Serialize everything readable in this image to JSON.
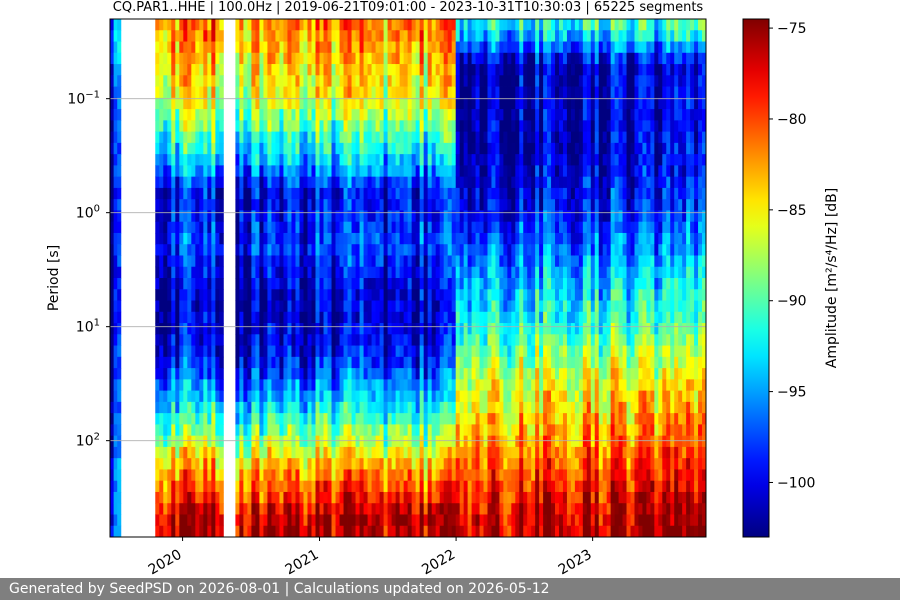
{
  "chart_data": {
    "type": "heatmap",
    "title": "CQ.PAR1..HHE | 100.0Hz | 2019-06-21T09:01:00 - 2023-10-31T10:30:03 | 65225 segments",
    "xlabel": "",
    "ylabel": "Period [s]",
    "x_axis": {
      "ticks": [
        "2020",
        "2021",
        "2022",
        "2023"
      ],
      "range": [
        "2019-06-21",
        "2023-10-31"
      ]
    },
    "y_axis": {
      "scale": "log",
      "inverted": true,
      "range": [
        0.02,
        700
      ],
      "ticks": [
        {
          "value": 0.1,
          "base": "10",
          "exp": "−1"
        },
        {
          "value": 1,
          "base": "10",
          "exp": "0"
        },
        {
          "value": 10,
          "base": "10",
          "exp": "1"
        },
        {
          "value": 100,
          "base": "10",
          "exp": "2"
        }
      ]
    },
    "grid": true,
    "colorbar": {
      "label": "Amplitude [m²/s⁴/Hz] [dB]",
      "colormap": "jet",
      "range": [
        -103,
        -74.5
      ],
      "ticks": [
        "−75",
        "−80",
        "−85",
        "−90",
        "−95",
        "−100"
      ],
      "tick_values": [
        -75,
        -80,
        -85,
        -90,
        -95,
        -100
      ]
    },
    "data_gaps": [
      {
        "start": "2019-07-20",
        "end": "2019-10-20"
      },
      {
        "start": "2020-04-15",
        "end": "2020-05-25"
      }
    ],
    "regimes": [
      {
        "start": "2019-06-21",
        "end": "2019-07-20",
        "rows": [
          {
            "period": 0.03,
            "dB": -95
          },
          {
            "period": 0.1,
            "dB": -99
          },
          {
            "period": 1,
            "dB": -101
          },
          {
            "period": 10,
            "dB": -101
          },
          {
            "period": 100,
            "dB": -99
          },
          {
            "period": 300,
            "dB": -97
          }
        ]
      },
      {
        "start": "2019-10-20",
        "end": "2021-12-31",
        "rows": [
          {
            "period": 0.025,
            "dB": -82
          },
          {
            "period": 0.05,
            "dB": -84
          },
          {
            "period": 0.1,
            "dB": -86
          },
          {
            "period": 0.3,
            "dB": -93
          },
          {
            "period": 0.7,
            "dB": -100
          },
          {
            "period": 2,
            "dB": -98
          },
          {
            "period": 5,
            "dB": -101
          },
          {
            "period": 10,
            "dB": -101
          },
          {
            "period": 20,
            "dB": -99
          },
          {
            "period": 50,
            "dB": -93
          },
          {
            "period": 100,
            "dB": -88
          },
          {
            "period": 200,
            "dB": -82
          },
          {
            "period": 500,
            "dB": -76
          }
        ]
      },
      {
        "start": "2021-12-31",
        "end": "2023-10-31",
        "rows": [
          {
            "period": 0.025,
            "dB": -92
          },
          {
            "period": 0.05,
            "dB": -101
          },
          {
            "period": 0.3,
            "dB": -101
          },
          {
            "period": 1,
            "dB": -99
          },
          {
            "period": 3,
            "dB": -95
          },
          {
            "period": 10,
            "dB": -91
          },
          {
            "period": 30,
            "dB": -86
          },
          {
            "period": 100,
            "dB": -82
          },
          {
            "period": 300,
            "dB": -78
          },
          {
            "period": 600,
            "dB": -76
          }
        ]
      }
    ]
  },
  "footer": {
    "text": "Generated by SeedPSD on 2026-08-01 | Calculations updated on 2026-05-12"
  }
}
